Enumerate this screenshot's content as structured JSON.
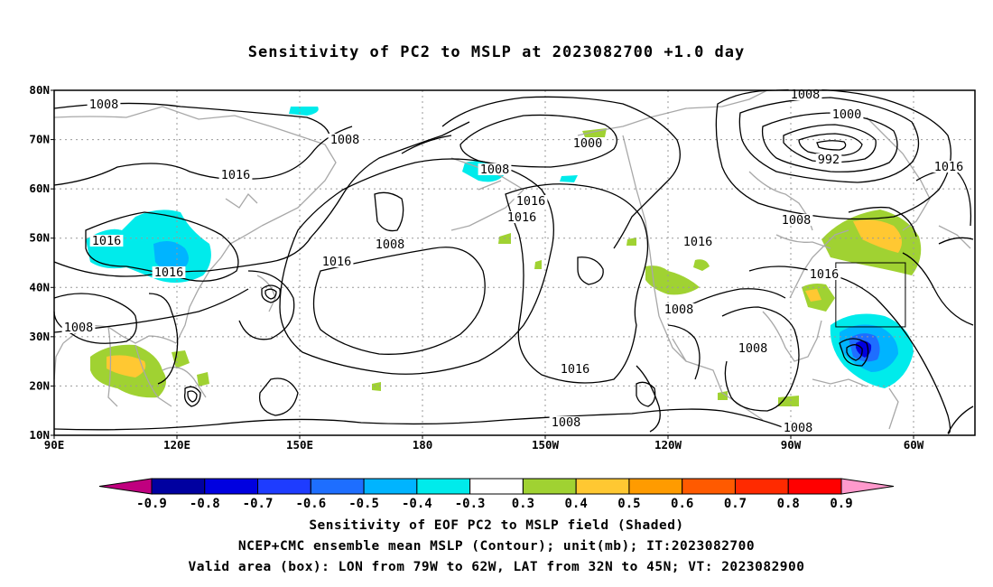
{
  "title": "Sensitivity of PC2 to MSLP at 2023082700 +1.0 day",
  "map": {
    "lat_labels": [
      "80N",
      "70N",
      "60N",
      "50N",
      "40N",
      "30N",
      "20N",
      "10N"
    ],
    "lon_labels": [
      "90E",
      "120E",
      "150E",
      "180",
      "150W",
      "120W",
      "90W",
      "60W"
    ],
    "lat_range": [
      10,
      80
    ],
    "lon_range_east": [
      90,
      315
    ],
    "gridlines": "dotted",
    "contour_labels": [
      {
        "text": "1008",
        "region": "north-central-asia"
      },
      {
        "text": "1008",
        "region": "siberia"
      },
      {
        "text": "1016",
        "region": "mongolia"
      },
      {
        "text": "1016",
        "region": "north-china"
      },
      {
        "text": "1016",
        "region": "east-china"
      },
      {
        "text": "1008",
        "region": "indochina"
      },
      {
        "text": "1016",
        "region": "north-pacific"
      },
      {
        "text": "1008",
        "region": "aleutians"
      },
      {
        "text": "1008",
        "region": "bering-sea"
      },
      {
        "text": "1000",
        "region": "alaska-low"
      },
      {
        "text": "1016",
        "region": "gulf-of-alaska"
      },
      {
        "text": "1016",
        "region": "pacific-high"
      },
      {
        "text": "1016",
        "region": "subtropical-pacific"
      },
      {
        "text": "1008",
        "region": "eastern-tropical-pacific"
      },
      {
        "text": "1016",
        "region": "western-us"
      },
      {
        "text": "1008",
        "region": "mexico"
      },
      {
        "text": "1008",
        "region": "gulf-of-mexico"
      },
      {
        "text": "1008",
        "region": "caribbean"
      },
      {
        "text": "1008",
        "region": "hudson-bay"
      },
      {
        "text": "1016",
        "region": "eastern-us"
      },
      {
        "text": "1000",
        "region": "baffin-low"
      },
      {
        "text": "992",
        "region": "baffin-low-center"
      },
      {
        "text": "1008",
        "region": "greenland"
      },
      {
        "text": "1016",
        "region": "north-atlantic"
      }
    ],
    "valid_box": {
      "lon_west": -79,
      "lon_east": -62,
      "lat_south": 32,
      "lat_north": 45
    }
  },
  "colorbar": {
    "labels": [
      "-0.9",
      "-0.8",
      "-0.7",
      "-0.6",
      "-0.5",
      "-0.4",
      "-0.3",
      "0.3",
      "0.4",
      "0.5",
      "0.6",
      "0.7",
      "0.8",
      "0.9"
    ],
    "colors": [
      "#c0007f",
      "#0000a0",
      "#0000e0",
      "#1e3cff",
      "#1e6eff",
      "#00b4ff",
      "#00ebeb",
      "#ffffff",
      "#a0d232",
      "#ffc832",
      "#ff9b00",
      "#ff5a00",
      "#ff2a00",
      "#ff0000",
      "#ff99cc"
    ]
  },
  "captions": {
    "line1": "Sensitivity of EOF PC2 to MSLP field (Shaded)",
    "line2": "NCEP+CMC ensemble mean MSLP (Contour); unit(mb); IT:2023082700",
    "line3": "Valid area (box): LON from 79W to 62W, LAT from 32N to 45N; VT: 2023082900"
  }
}
